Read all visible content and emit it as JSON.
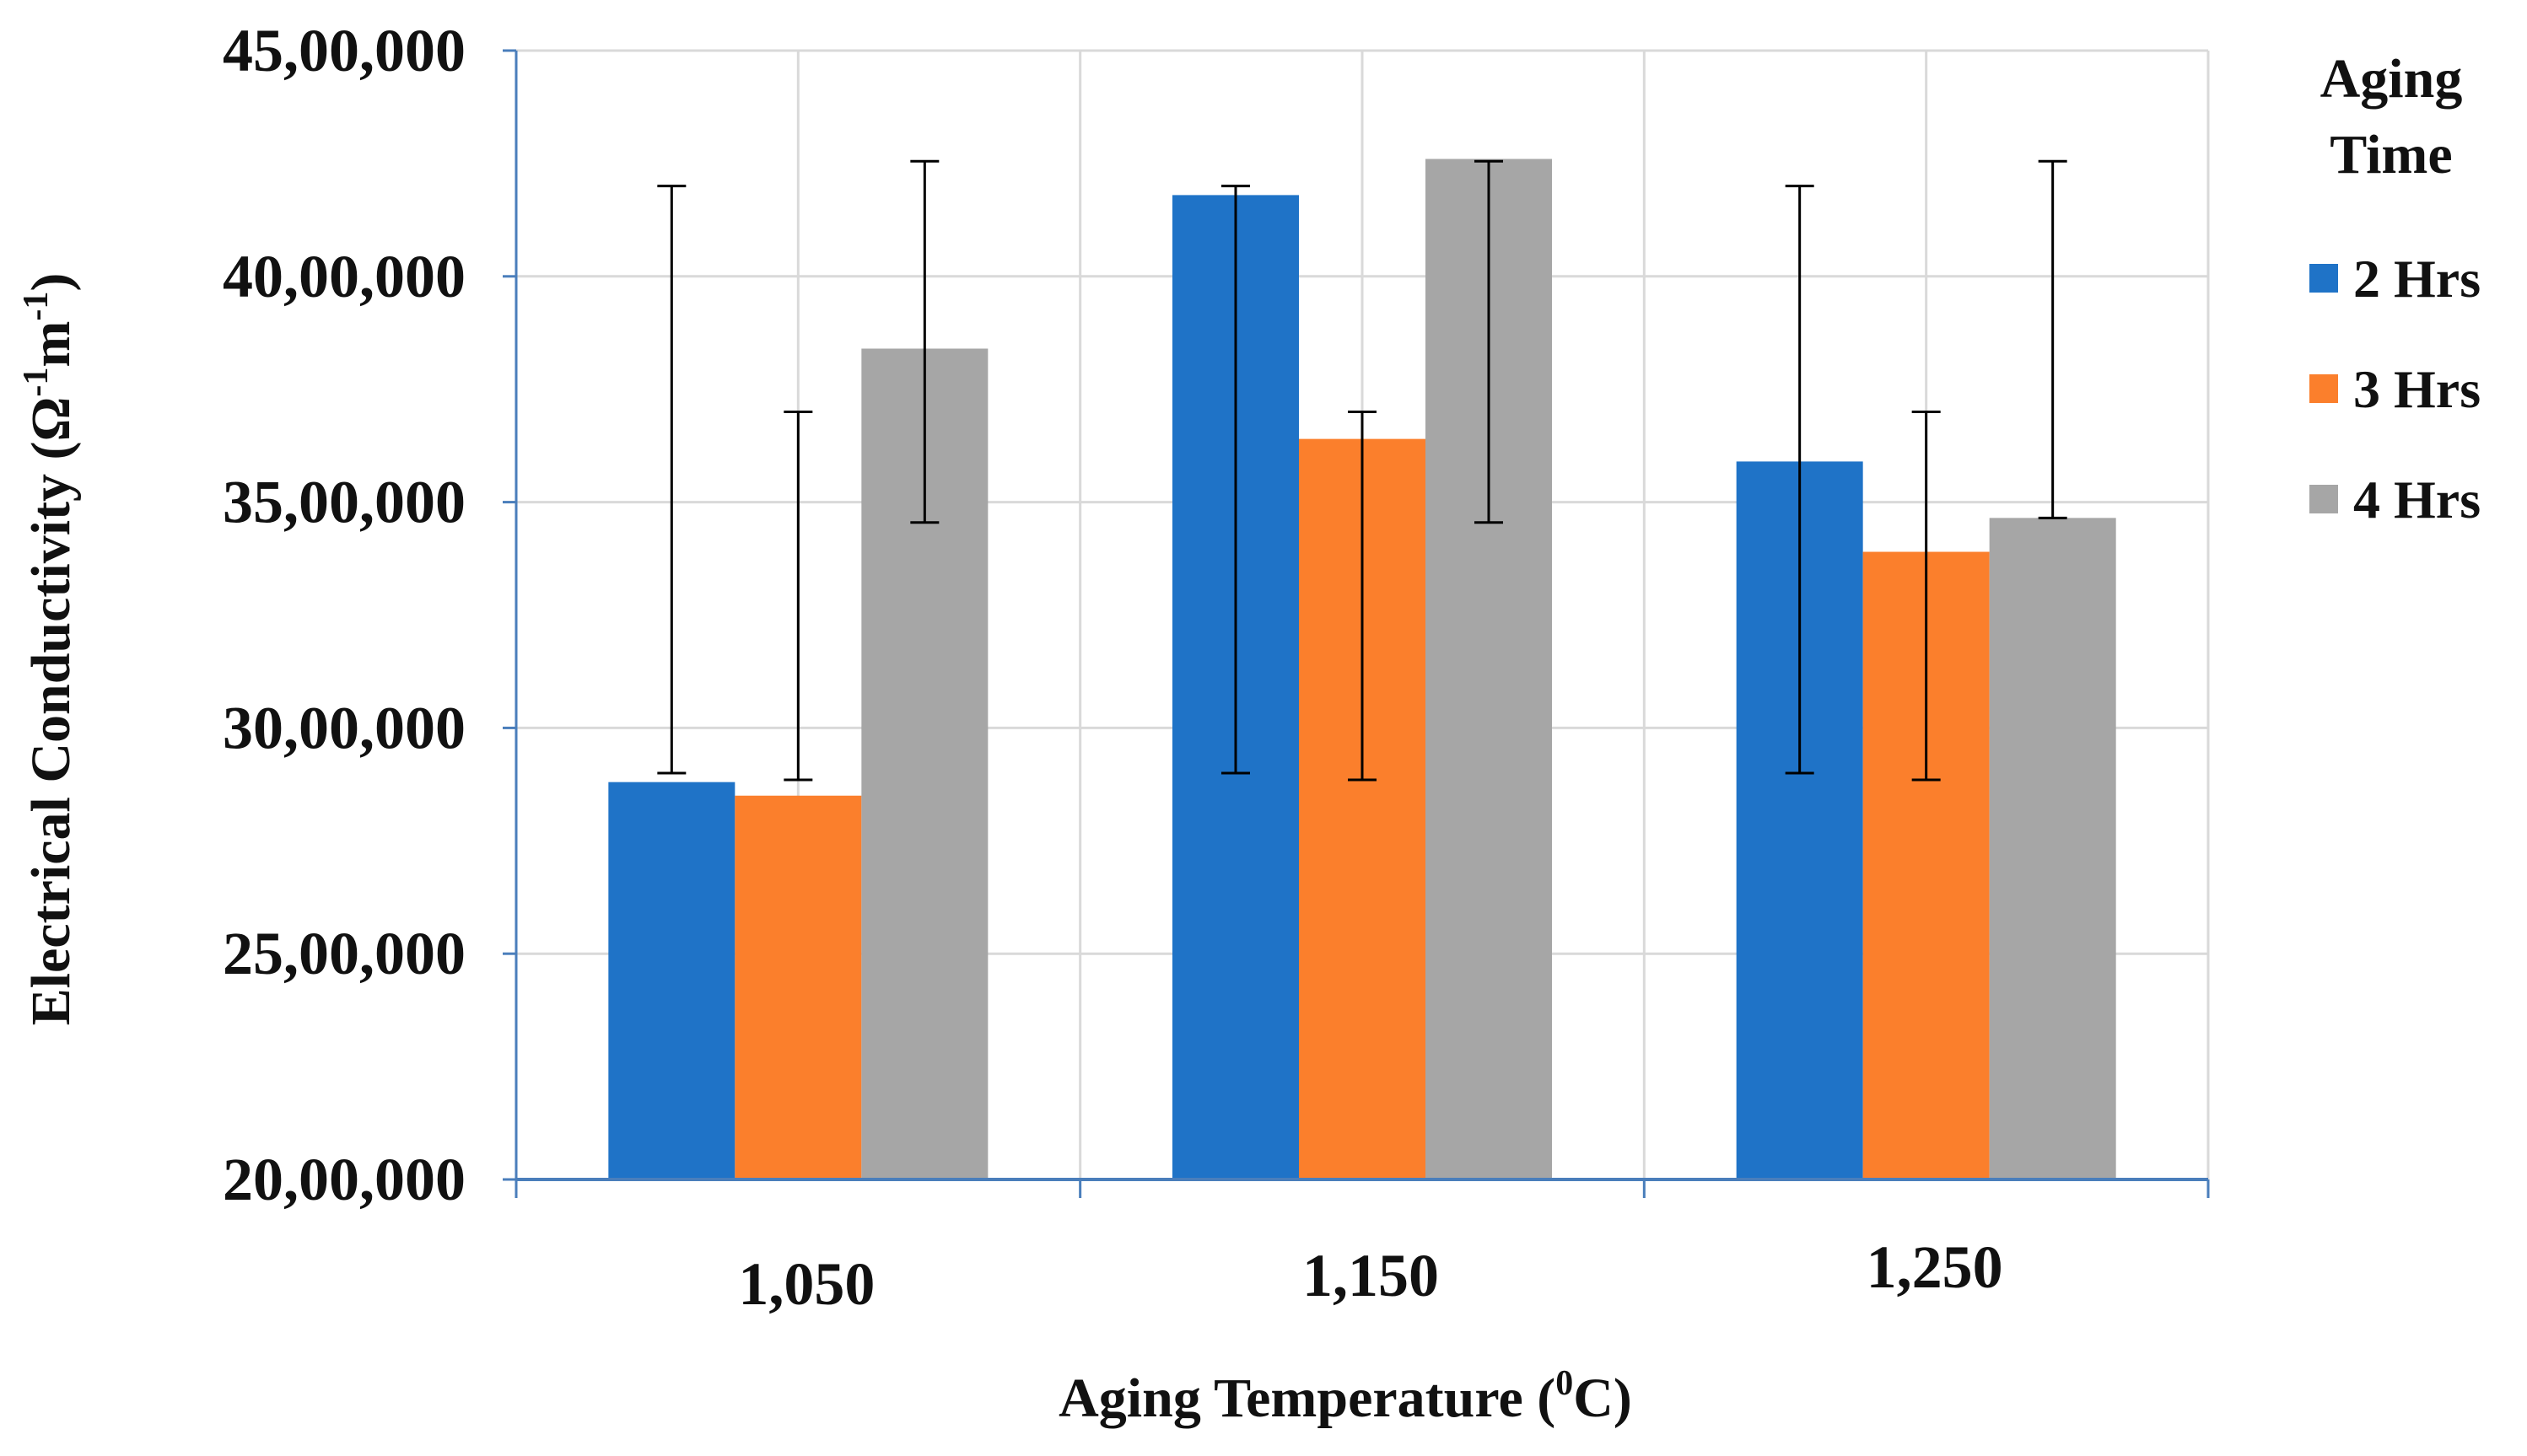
{
  "chart_data": {
    "type": "bar",
    "title": "",
    "xlabel": "Aging Temperature (",
    "xlabel_sup": "0",
    "xlabel_tail": "C)",
    "ylabel": "Electrical Conductivity (Ω",
    "ylabel_sup1": "-1",
    "ylabel_mid": "m",
    "ylabel_sup2": "-1",
    "ylabel_tail": ")",
    "ylim": [
      2000000,
      4500000
    ],
    "yticks": [
      2000000,
      2500000,
      3000000,
      3500000,
      4000000,
      4500000
    ],
    "ytick_labels": [
      "20,00,000",
      "25,00,000",
      "30,00,000",
      "35,00,000",
      "40,00,000",
      "45,00,000"
    ],
    "categories": [
      "1,050",
      "1,150",
      "1,250"
    ],
    "legend_title_line1": "Aging",
    "legend_title_line2": "Time",
    "legend_position": "right",
    "grid": true,
    "series": [
      {
        "name": "2 Hrs",
        "color": "#1f73c7",
        "values": [
          2880000,
          4180000,
          3590000
        ],
        "error_low": [
          2900000,
          2900000,
          2900000
        ],
        "error_high": [
          4200000,
          4200000,
          4200000
        ]
      },
      {
        "name": "3 Hrs",
        "color": "#fb7f2c",
        "values": [
          2850000,
          3640000,
          3390000
        ],
        "error_low": [
          2885000,
          2885000,
          2885000
        ],
        "error_high": [
          3700000,
          3700000,
          3700000
        ]
      },
      {
        "name": "4 Hrs",
        "color": "#a6a6a6",
        "values": [
          3840000,
          4260000,
          3465000
        ],
        "error_low": [
          3455000,
          3455000,
          3465000
        ],
        "error_high": [
          4255000,
          4255000,
          4255000
        ]
      }
    ],
    "colors": {
      "grid": "#d9d9d9",
      "axis": "#4a7ebb",
      "error_bar": "#000000"
    }
  }
}
